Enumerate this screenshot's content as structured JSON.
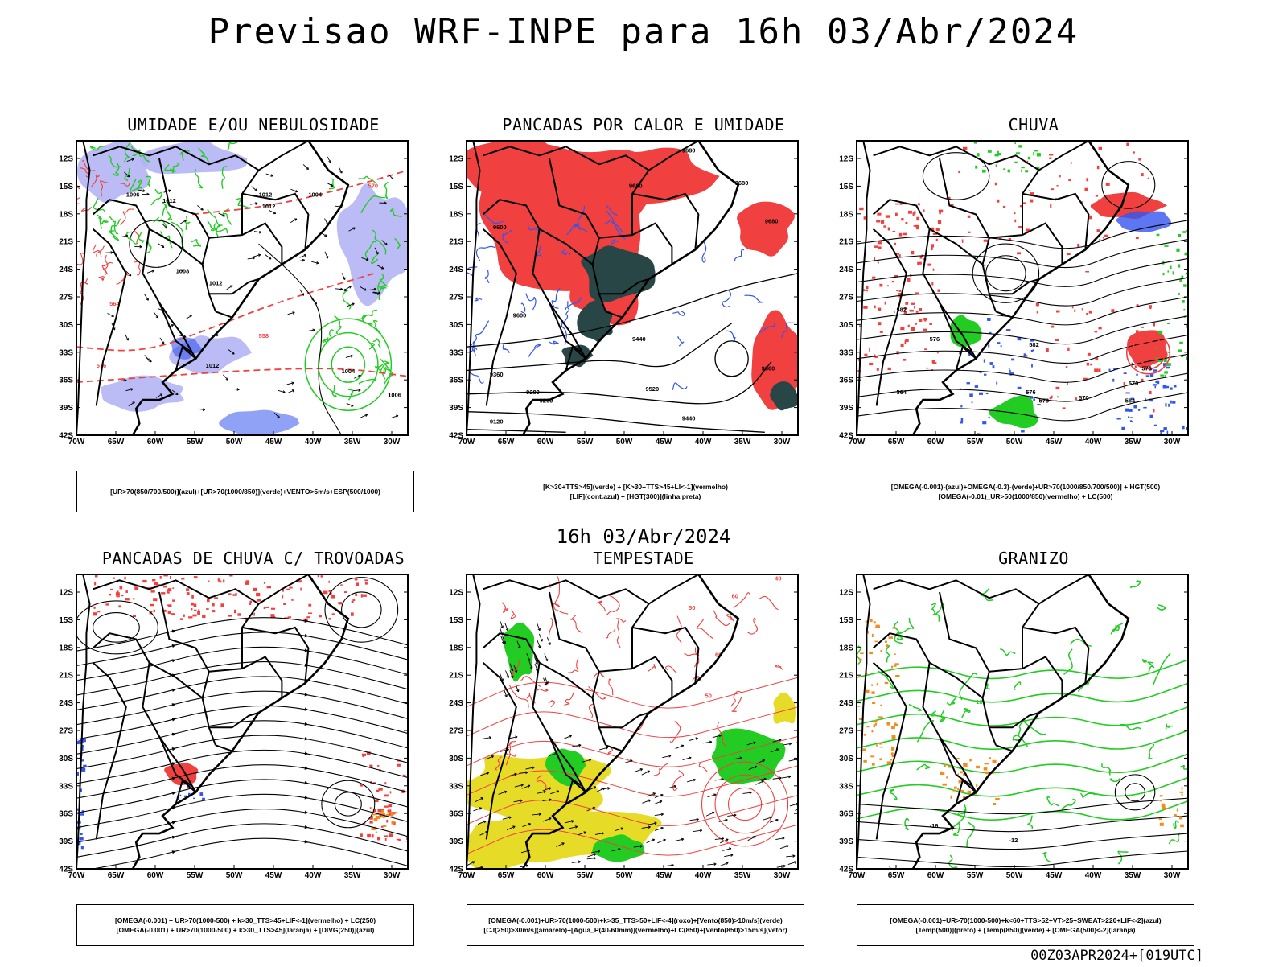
{
  "title": "Previsao WRF-INPE  para 16h 03/Abr/2024",
  "middle_title": "16h 03/Abr/2024",
  "footer": "00Z03APR2024+[019UTC]",
  "axes": {
    "lat_ticks": [
      "12S",
      "15S",
      "18S",
      "21S",
      "24S",
      "27S",
      "30S",
      "33S",
      "36S",
      "39S",
      "42S"
    ],
    "lon_ticks": [
      "70W",
      "65W",
      "60W",
      "55W",
      "50W",
      "45W",
      "40W",
      "35W",
      "30W"
    ]
  },
  "colors": {
    "red": "#f04040",
    "green": "#22cc22",
    "blue": "#3355ee",
    "lavender": "#b4b4f4",
    "yellow": "#e6dc28",
    "orange": "#f08c20",
    "darkteal": "#284646",
    "black": "#000000"
  },
  "panels": [
    {
      "title": "UMIDADE E/OU NEBULOSIDADE",
      "legend": [
        "[UR>70(850/700/500)](azul)+[UR>70(1000/850)](verde)+VENTO>5m/s+ESP(500/1000)"
      ],
      "contour_labels": [
        "1006",
        "1012",
        "1012",
        "1012",
        "1004",
        "1008",
        "1012",
        "1012",
        "1004",
        "1006",
        "570",
        "576",
        "564",
        "558"
      ]
    },
    {
      "title": "PANCADAS POR CALOR E UMIDADE",
      "legend": [
        "[K>30+TTS>45](verde) + [K>30+TTS>45+LI<-1](vermelho)",
        "[LIF](cont.azul) + [HGT(300)](linha preta)"
      ],
      "contour_labels": [
        "9680",
        "9680",
        "9680",
        "9680",
        "9600",
        "9600",
        "9520",
        "9440",
        "9360",
        "9280",
        "9200",
        "9120",
        "9440",
        "9360"
      ]
    },
    {
      "title": "CHUVA",
      "legend": [
        "[OMEGA(-0.001)-(azul)+OMEGA(-0.3)-(verde)+UR>70(1000/850/700/500)] + HGT(500)",
        "[OMEGA(-0.01)_UR>50(1000/850)(vermelho) + LC(500)"
      ],
      "contour_labels": [
        "582",
        "576",
        "564",
        "582",
        "576",
        "573",
        "570",
        "564",
        "576",
        "570"
      ]
    },
    {
      "title": "PANCADAS DE CHUVA C/ TROVOADAS",
      "legend": [
        "[OMEGA(-0.001) + UR>70(1000-500) + k>30_TTS>45+LIF<-1](vermelho) + LC(250)",
        "[OMEGA(-0.001) + UR>70(1000-500) + k>30_TTS>45](laranja) + [DIVG(250)](azul)"
      ],
      "contour_labels": []
    },
    {
      "title": "TEMPESTADE",
      "legend": [
        "[OMEGA(-0.001)+UR>70(1000-500)+k>35_TTS>50+LIF<-4](roxo)+[Vento(850)>10m/s](verde)",
        "[CJ(250)>30m/s](amarelo)+[Agua_P(40-60mm)](vermelho)+LC(850)+[Vento(850)>15m/s](vetor)"
      ],
      "contour_labels": [
        "40",
        "50",
        "60",
        "60",
        "50"
      ]
    },
    {
      "title": "GRANIZO",
      "legend": [
        "[OMEGA(-0.001)+UR>70(1000-500)+k<60+TTS>52+VT>25+SWEAT>220+LIF<-2](azul)",
        "[Temp(500)](preto) + [Temp(850)](verde) + [OMEGA(500)<-2](laranja)"
      ],
      "contour_labels": [
        "-16",
        "-12",
        "21",
        "18"
      ]
    }
  ]
}
